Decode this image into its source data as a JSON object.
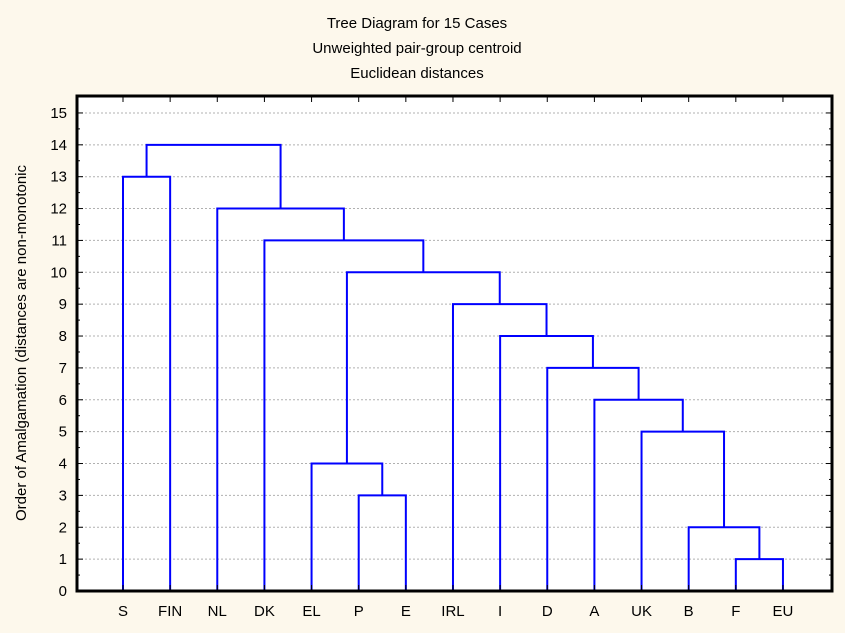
{
  "chart_data": {
    "type": "dendrogram",
    "title": "Tree Diagram for 15 Cases",
    "subtitle_1": "Unweighted pair-group centroid",
    "subtitle_2": "Euclidean distances",
    "ylabel": "Order of Amalgamation (distances are non-monotonic",
    "xlabel": "",
    "ylim": [
      0,
      15
    ],
    "yticks": [
      "0",
      "1",
      "2",
      "3",
      "4",
      "5",
      "6",
      "7",
      "8",
      "9",
      "10",
      "11",
      "12",
      "13",
      "14",
      "15"
    ],
    "grid": true,
    "leaves": [
      "S",
      "FIN",
      "NL",
      "DK",
      "EL",
      "P",
      "E",
      "IRL",
      "I",
      "D",
      "A",
      "UK",
      "B",
      "F",
      "EU"
    ],
    "merges": [
      {
        "left": "F",
        "right": "EU",
        "height": 1
      },
      {
        "left": "B",
        "right": "m1",
        "height": 2
      },
      {
        "left": "P",
        "right": "E",
        "height": 3
      },
      {
        "left": "EL",
        "right": "m3",
        "height": 4
      },
      {
        "left": "UK",
        "right": "m2",
        "height": 5
      },
      {
        "left": "A",
        "right": "m5",
        "height": 6
      },
      {
        "left": "D",
        "right": "m6",
        "height": 7
      },
      {
        "left": "I",
        "right": "m7",
        "height": 8
      },
      {
        "left": "IRL",
        "right": "m8",
        "height": 9
      },
      {
        "left": "m4",
        "right": "m9",
        "height": 10
      },
      {
        "left": "DK",
        "right": "m10",
        "height": 11
      },
      {
        "left": "NL",
        "right": "m11",
        "height": 12
      },
      {
        "left": "S",
        "right": "FIN",
        "height": 13
      },
      {
        "left": "m13",
        "right": "m12",
        "height": 14
      }
    ],
    "line_color": "#0000ff"
  }
}
